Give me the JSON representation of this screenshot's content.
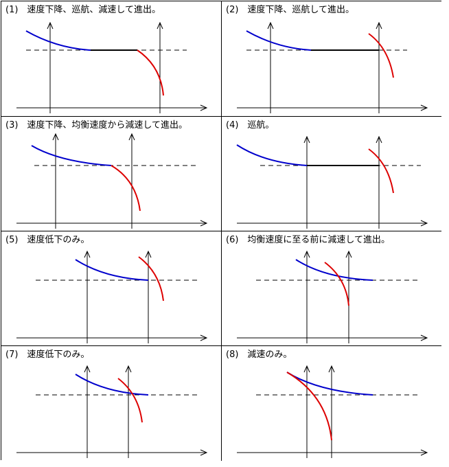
{
  "colors": {
    "approach_curve": "#0000cc",
    "decel_curve": "#dd0000",
    "line": "#000000"
  },
  "panels": [
    {
      "label": "(1)　速度下降、巡航、減速して進出。"
    },
    {
      "label": "(2)　速度下降、巡航して進出。"
    },
    {
      "label": "(3)　速度下降、均衡速度から減速して進出。"
    },
    {
      "label": "(4)　巡航。"
    },
    {
      "label": "(5)　速度低下のみ。"
    },
    {
      "label": "(6)　均衡速度に至る前に減速して進出。"
    },
    {
      "label": "(7)　速度低下のみ。"
    },
    {
      "label": "(8)　減速のみ。"
    }
  ]
}
